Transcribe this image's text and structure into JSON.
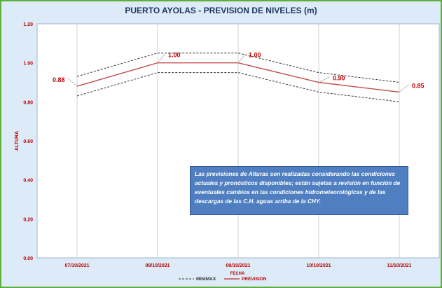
{
  "chart_data": {
    "type": "line",
    "title": "PUERTO AYOLAS - PREVISION DE NIVELES (m)",
    "xlabel": "FECHA",
    "ylabel": "ALTURA",
    "categories": [
      "07/10/2021",
      "08/10/2021",
      "09/10/2021",
      "10/10/2021",
      "11/10/2021"
    ],
    "ylim": [
      0,
      1.2
    ],
    "yticks": [
      "0.00",
      "0.20",
      "0.40",
      "0.60",
      "0.80",
      "1.00",
      "1.20"
    ],
    "series": [
      {
        "name": "PREVISION",
        "values": [
          0.88,
          1.0,
          1.0,
          0.9,
          0.85
        ],
        "labels": [
          "0.88",
          "1.00",
          "1.00",
          "0.90",
          "0.85"
        ],
        "color": "#c0504d",
        "style": "solid"
      },
      {
        "name": "MIN/MAX",
        "role": "max",
        "values": [
          0.93,
          1.05,
          1.05,
          0.95,
          0.9
        ],
        "color": "#333333",
        "style": "dashed"
      },
      {
        "name": "MIN/MAX",
        "role": "min",
        "values": [
          0.83,
          0.95,
          0.95,
          0.85,
          0.8
        ],
        "color": "#333333",
        "style": "dashed"
      }
    ],
    "grid": {
      "horizontal": false,
      "vertical": "per-category"
    },
    "legend": {
      "position": "bottom",
      "entries": [
        "MIN/MAX",
        "PREVISION"
      ]
    }
  },
  "note": "Las previsiones de Alturas son realizadas considerando las condiciones actuales y pronósticos disponibles; están sujetas a revisión en función de eventuales cambios en las condiciones hidrometeorológicas y de las descargas de las C.H. aguas arriba de la CHY.",
  "colors": {
    "background": "#dcebf7",
    "plot_area": "#ffffff",
    "border": "#5fae3b",
    "title": "#1f3864",
    "axis_labels": "#c00000",
    "note_box": "#4f7fc0"
  }
}
